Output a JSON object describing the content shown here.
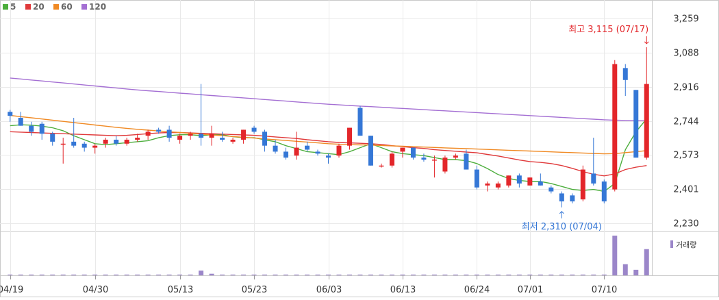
{
  "legend": [
    {
      "label": "5",
      "color": "#4cae3c"
    },
    {
      "label": "20",
      "color": "#e0393a"
    },
    {
      "label": "60",
      "color": "#f08a24"
    },
    {
      "label": "120",
      "color": "#a46fd3"
    }
  ],
  "colors": {
    "up": "#e3262a",
    "down": "#3577d6",
    "volume": "#9b86c9",
    "grid": "#e9e9e9"
  },
  "chart_data": {
    "type": "candlestick",
    "ylim": [
      2230,
      3259
    ],
    "y_ticks": [
      "3,259",
      "3,088",
      "2,916",
      "2,744",
      "2,573",
      "2,401",
      "2,230"
    ],
    "x_ticks": [
      {
        "label": "04/19",
        "index": 0
      },
      {
        "label": "04/30",
        "index": 8
      },
      {
        "label": "05/13",
        "index": 16
      },
      {
        "label": "05/23",
        "index": 23
      },
      {
        "label": "06/03",
        "index": 30
      },
      {
        "label": "06/13",
        "index": 37
      },
      {
        "label": "06/24",
        "index": 44
      },
      {
        "label": "07/01",
        "index": 49
      },
      {
        "label": "07/10",
        "index": 56
      }
    ],
    "candles": [
      [
        2790,
        2800,
        2740,
        2770
      ],
      [
        2760,
        2790,
        2720,
        2720
      ],
      [
        2720,
        2740,
        2670,
        2690
      ],
      [
        2730,
        2740,
        2650,
        2680
      ],
      [
        2680,
        2690,
        2620,
        2640
      ],
      [
        2630,
        2660,
        2530,
        2630
      ],
      [
        2640,
        2760,
        2610,
        2620
      ],
      [
        2630,
        2640,
        2590,
        2610
      ],
      [
        2610,
        2630,
        2580,
        2620
      ],
      [
        2630,
        2660,
        2610,
        2650
      ],
      [
        2650,
        2670,
        2620,
        2630
      ],
      [
        2630,
        2660,
        2620,
        2650
      ],
      [
        2650,
        2680,
        2640,
        2660
      ],
      [
        2670,
        2700,
        2650,
        2690
      ],
      [
        2700,
        2710,
        2680,
        2690
      ],
      [
        2700,
        2720,
        2640,
        2660
      ],
      [
        2650,
        2680,
        2630,
        2670
      ],
      [
        2670,
        2690,
        2650,
        2680
      ],
      [
        2680,
        2930,
        2620,
        2660
      ],
      [
        2660,
        2720,
        2620,
        2680
      ],
      [
        2660,
        2690,
        2640,
        2650
      ],
      [
        2640,
        2660,
        2630,
        2650
      ],
      [
        2650,
        2700,
        2630,
        2700
      ],
      [
        2710,
        2720,
        2680,
        2690
      ],
      [
        2690,
        2700,
        2590,
        2620
      ],
      [
        2620,
        2650,
        2580,
        2590
      ],
      [
        2590,
        2610,
        2550,
        2560
      ],
      [
        2570,
        2690,
        2550,
        2610
      ],
      [
        2620,
        2640,
        2590,
        2600
      ],
      [
        2590,
        2600,
        2570,
        2580
      ],
      [
        2570,
        2580,
        2530,
        2560
      ],
      [
        2570,
        2630,
        2560,
        2620
      ],
      [
        2620,
        2710,
        2600,
        2710
      ],
      [
        2810,
        2820,
        2670,
        2670
      ],
      [
        2670,
        2670,
        2520,
        2520
      ],
      [
        2520,
        2530,
        2510,
        2520
      ],
      [
        2520,
        2590,
        2510,
        2580
      ],
      [
        2590,
        2610,
        2560,
        2610
      ],
      [
        2610,
        2610,
        2550,
        2560
      ],
      [
        2560,
        2580,
        2540,
        2550
      ],
      [
        2550,
        2570,
        2460,
        2550
      ],
      [
        2490,
        2570,
        2480,
        2560
      ],
      [
        2560,
        2580,
        2550,
        2570
      ],
      [
        2580,
        2600,
        2500,
        2500
      ],
      [
        2500,
        2520,
        2400,
        2410
      ],
      [
        2420,
        2440,
        2390,
        2430
      ],
      [
        2410,
        2440,
        2400,
        2430
      ],
      [
        2420,
        2470,
        2410,
        2470
      ],
      [
        2470,
        2480,
        2410,
        2430
      ],
      [
        2420,
        2460,
        2420,
        2460
      ],
      [
        2440,
        2480,
        2420,
        2420
      ],
      [
        2410,
        2420,
        2380,
        2390
      ],
      [
        2380,
        2390,
        2310,
        2340
      ],
      [
        2370,
        2380,
        2330,
        2340
      ],
      [
        2350,
        2520,
        2340,
        2500
      ],
      [
        2480,
        2660,
        2420,
        2430
      ],
      [
        2440,
        2450,
        2330,
        2340
      ],
      [
        2400,
        3050,
        2390,
        3030
      ],
      [
        3010,
        3030,
        2870,
        2950
      ],
      [
        2900,
        2900,
        2560,
        2560
      ],
      [
        2560,
        3115,
        2550,
        2930
      ]
    ],
    "moving_averages": [
      {
        "name": "5",
        "values": [
          2720,
          2725,
          2723,
          2718,
          2710,
          2695,
          2670,
          2650,
          2630,
          2625,
          2630,
          2635,
          2640,
          2645,
          2660,
          2670,
          2675,
          2675,
          2670,
          2675,
          2675,
          2665,
          2660,
          2660,
          2650,
          2640,
          2620,
          2605,
          2590,
          2585,
          2580,
          2575,
          2590,
          2610,
          2630,
          2610,
          2590,
          2580,
          2575,
          2570,
          2560,
          2550,
          2550,
          2545,
          2530,
          2505,
          2475,
          2455,
          2445,
          2440,
          2440,
          2430,
          2415,
          2400,
          2395,
          2400,
          2390,
          2430,
          2600,
          2690,
          2755
        ]
      },
      {
        "name": "20",
        "values": [
          2690,
          2688,
          2686,
          2684,
          2682,
          2680,
          2678,
          2676,
          2674,
          2672,
          2670,
          2672,
          2676,
          2680,
          2684,
          2686,
          2686,
          2684,
          2682,
          2680,
          2678,
          2676,
          2674,
          2672,
          2668,
          2664,
          2660,
          2656,
          2650,
          2645,
          2640,
          2636,
          2634,
          2632,
          2630,
          2626,
          2620,
          2615,
          2610,
          2606,
          2600,
          2596,
          2592,
          2588,
          2584,
          2576,
          2568,
          2558,
          2548,
          2540,
          2536,
          2530,
          2520,
          2506,
          2490,
          2476,
          2468,
          2478,
          2500,
          2512,
          2520
        ]
      },
      {
        "name": "60",
        "values": [
          2772,
          2766,
          2760,
          2754,
          2748,
          2742,
          2736,
          2730,
          2724,
          2718,
          2712,
          2707,
          2702,
          2698,
          2694,
          2690,
          2686,
          2682,
          2678,
          2674,
          2670,
          2666,
          2662,
          2658,
          2654,
          2650,
          2646,
          2642,
          2638,
          2634,
          2630,
          2627,
          2625,
          2624,
          2623,
          2621,
          2619,
          2617,
          2615,
          2613,
          2611,
          2609,
          2607,
          2605,
          2603,
          2601,
          2599,
          2597,
          2595,
          2593,
          2591,
          2589,
          2587,
          2585,
          2583,
          2581,
          2579,
          2580,
          2585,
          2590,
          2595
        ]
      },
      {
        "name": "120",
        "values": [
          2960,
          2955,
          2950,
          2945,
          2940,
          2935,
          2930,
          2925,
          2920,
          2915,
          2910,
          2905,
          2900,
          2896,
          2892,
          2888,
          2884,
          2880,
          2876,
          2872,
          2868,
          2864,
          2860,
          2856,
          2852,
          2848,
          2844,
          2840,
          2836,
          2832,
          2828,
          2825,
          2822,
          2819,
          2816,
          2813,
          2810,
          2807,
          2804,
          2801,
          2798,
          2795,
          2792,
          2789,
          2786,
          2783,
          2780,
          2777,
          2774,
          2771,
          2768,
          2765,
          2762,
          2759,
          2756,
          2753,
          2750,
          2748,
          2747,
          2746,
          2745
        ]
      }
    ],
    "volume": [
      1,
      1,
      1,
      1,
      1,
      1,
      1,
      1,
      1,
      1,
      1,
      1,
      1,
      1,
      1,
      1,
      1,
      1,
      6,
      2,
      1,
      1,
      1,
      1,
      1,
      1,
      1,
      1,
      1,
      1,
      1,
      1,
      1,
      1,
      1,
      1,
      1,
      1,
      1,
      1,
      1,
      1,
      1,
      1,
      1,
      1,
      1,
      1,
      1,
      1,
      1,
      1,
      1,
      1,
      1,
      1,
      1,
      50,
      14,
      7,
      33
    ],
    "volume_label": "거래량",
    "annotations": {
      "high": {
        "text": "최고 3,115 (07/17)",
        "index": 60,
        "value": 3115
      },
      "low": {
        "text": "최저 2,310 (07/04)",
        "index": 52,
        "value": 2310
      }
    }
  }
}
